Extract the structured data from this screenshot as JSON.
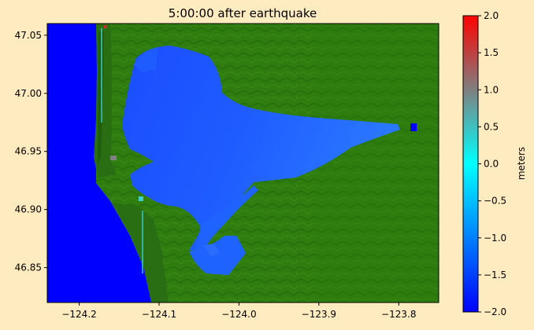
{
  "figure": {
    "background": "#ffebc0"
  },
  "chart_data": {
    "type": "heatmap",
    "title": "5:00:00 after earthquake",
    "xlabel": "",
    "ylabel": "",
    "xlim": [
      -124.24,
      -123.75
    ],
    "ylim": [
      46.82,
      47.06
    ],
    "x_ticks": [
      -124.2,
      -124.1,
      -124.0,
      -123.9,
      -123.8
    ],
    "x_tick_labels": [
      "−124.2",
      "−124.1",
      "−124.0",
      "−123.9",
      "−123.8"
    ],
    "y_ticks": [
      46.85,
      46.9,
      46.95,
      47.0,
      47.05
    ],
    "y_tick_labels": [
      "46.85",
      "46.90",
      "46.95",
      "47.00",
      "47.05"
    ],
    "grid": false,
    "land_color": "#2e7d10",
    "colorbar": {
      "label": "meters",
      "vmin": -2.0,
      "vmax": 2.0,
      "ticks": [
        -2.0,
        -1.5,
        -1.0,
        -0.5,
        0.0,
        0.5,
        1.0,
        1.5,
        2.0
      ],
      "tick_labels": [
        "−2.0",
        "−1.5",
        "−1.0",
        "−0.5",
        "0.0",
        "0.5",
        "1.0",
        "1.5",
        "2.0"
      ],
      "color_stops": [
        {
          "value": -2.0,
          "color": "#0000ff"
        },
        {
          "value": -1.0,
          "color": "#0080ff"
        },
        {
          "value": 0.0,
          "color": "#00ffff"
        },
        {
          "value": 1.0,
          "color": "#808080"
        },
        {
          "value": 2.0,
          "color": "#ff0000"
        }
      ]
    },
    "water_regions": [
      {
        "region": "open ocean",
        "approx_value": -1.95
      },
      {
        "region": "Grays Harbor bay",
        "approx_value": -1.6
      },
      {
        "region": "Chehalis River channel",
        "approx_value": -1.3
      }
    ]
  }
}
